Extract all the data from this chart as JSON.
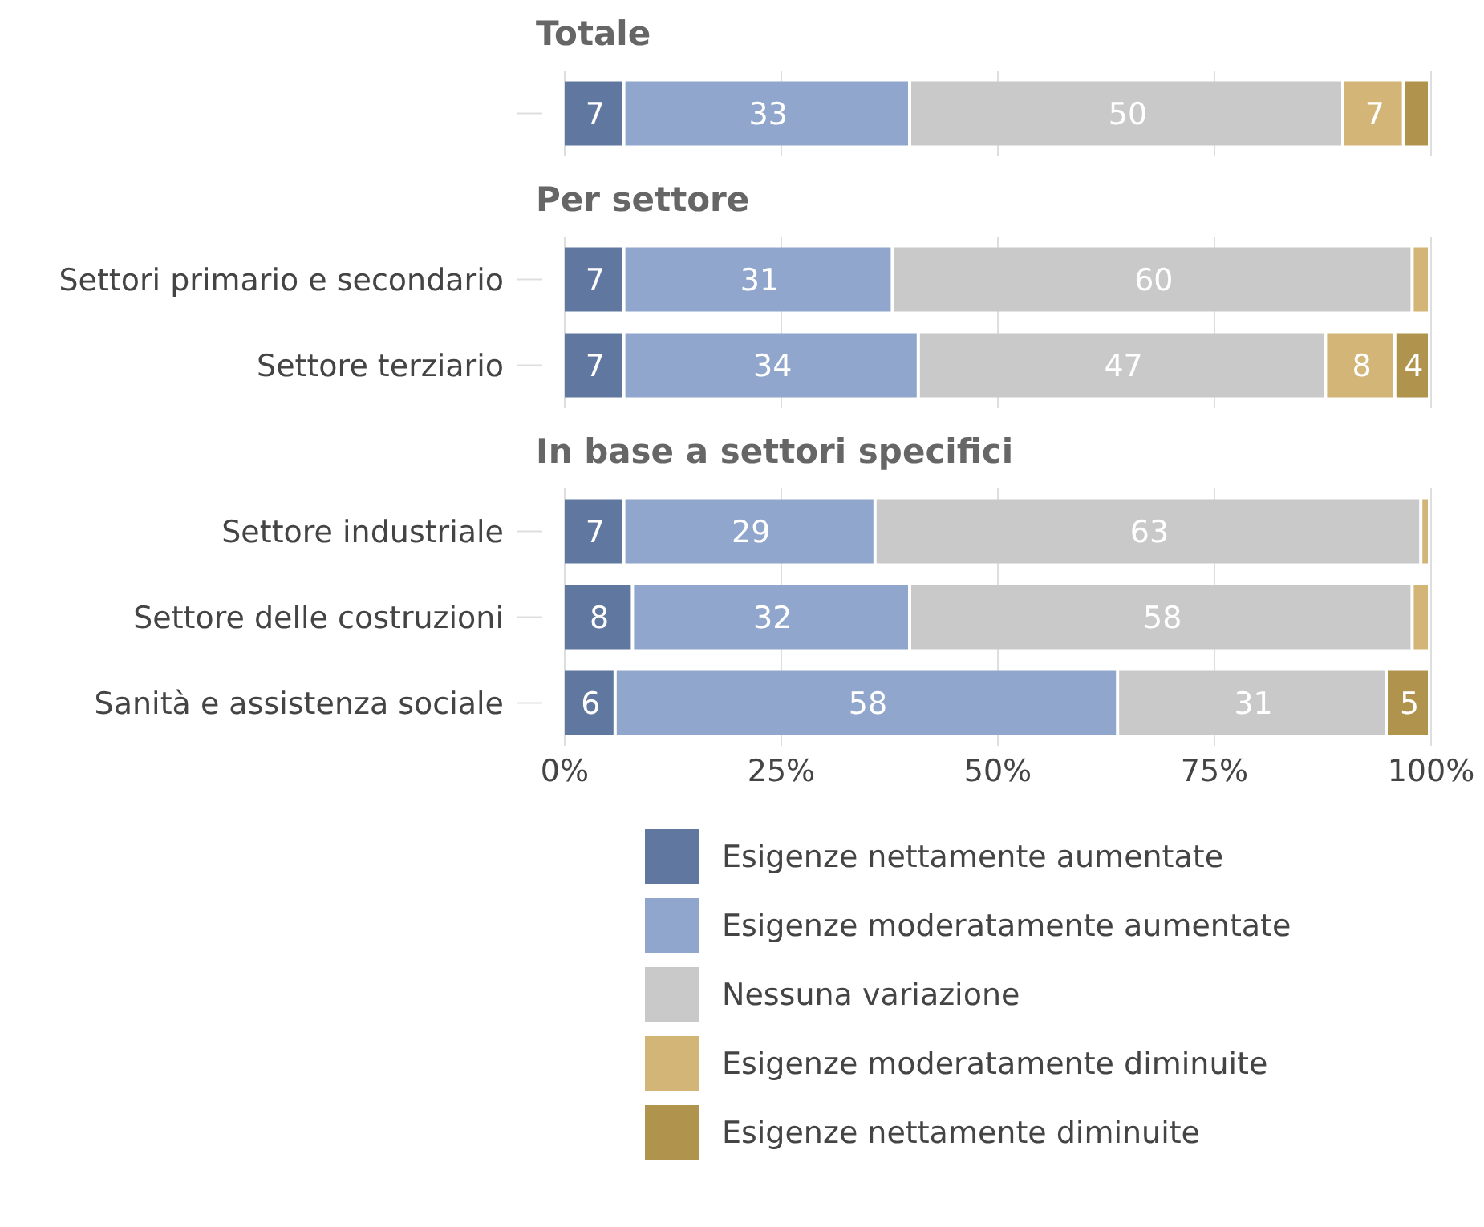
{
  "chart_data": [
    {
      "type": "bar",
      "title": "Totale",
      "orientation": "horizontal",
      "stacked": true,
      "categories": [
        null
      ],
      "xlim": [
        0,
        100
      ],
      "xticks": [
        {
          "value": 0,
          "label": null
        },
        {
          "value": 25,
          "label": null
        },
        {
          "value": 50,
          "label": null
        },
        {
          "value": 75,
          "label": null
        },
        {
          "value": 100,
          "label": null
        }
      ],
      "tick_labels": false,
      "grid": "x",
      "series": [
        {
          "color": "#60789f",
          "values": [
            7
          ],
          "value_labels": [
            "7"
          ]
        },
        {
          "color": "#91a6cc",
          "values": [
            33
          ],
          "value_labels": [
            "33"
          ]
        },
        {
          "color": "#c9c9c9",
          "values": [
            50
          ],
          "value_labels": [
            "50"
          ]
        },
        {
          "color": "#d3b577",
          "values": [
            7
          ],
          "value_labels": [
            "7"
          ]
        },
        {
          "color": "#b0944e",
          "values": [
            3
          ],
          "value_labels": [
            null
          ]
        }
      ]
    },
    {
      "type": "bar",
      "title": "Per settore",
      "orientation": "horizontal",
      "stacked": true,
      "categories": [
        "Settori primario e secondario",
        "Settore terziario"
      ],
      "xlim": [
        0,
        100
      ],
      "xticks": [
        {
          "value": 0,
          "label": null
        },
        {
          "value": 25,
          "label": null
        },
        {
          "value": 50,
          "label": null
        },
        {
          "value": 75,
          "label": null
        },
        {
          "value": 100,
          "label": null
        }
      ],
      "tick_labels": "y",
      "grid": "x",
      "series": [
        {
          "color": "#60789f",
          "values": [
            7,
            7
          ],
          "value_labels": [
            "7",
            "7"
          ]
        },
        {
          "color": "#91a6cc",
          "values": [
            31,
            34
          ],
          "value_labels": [
            "31",
            "34"
          ]
        },
        {
          "color": "#c9c9c9",
          "values": [
            60,
            47
          ],
          "value_labels": [
            "60",
            "47"
          ]
        },
        {
          "color": "#d3b577",
          "values": [
            2,
            8
          ],
          "value_labels": [
            null,
            "8"
          ]
        },
        {
          "color": "#b0944e",
          "values": [
            0,
            4
          ],
          "value_labels": [
            null,
            "4"
          ]
        }
      ]
    },
    {
      "type": "bar",
      "title": "In base a settori specifici",
      "orientation": "horizontal",
      "stacked": true,
      "categories": [
        "Settore industriale",
        "Settore delle costruzioni",
        "Sanità e assistenza sociale"
      ],
      "xlim": [
        0,
        100
      ],
      "xticks": [
        {
          "value": 0,
          "label": "0%"
        },
        {
          "value": 25,
          "label": "25%"
        },
        {
          "value": 50,
          "label": "50%"
        },
        {
          "value": 75,
          "label": "75%"
        },
        {
          "value": 100,
          "label": "100%"
        }
      ],
      "grid": "x",
      "legend": "bottom",
      "series": [
        {
          "name": "Esigenze nettamente aumentate",
          "color": "#60789f",
          "values": [
            7,
            8,
            6
          ],
          "value_labels": [
            "7",
            "8",
            "6"
          ]
        },
        {
          "name": "Esigenze moderatamente aumentate",
          "color": "#91a6cc",
          "values": [
            29,
            32,
            58
          ],
          "value_labels": [
            "29",
            "32",
            "58"
          ]
        },
        {
          "name": "Nessuna variazione",
          "color": "#c9c9c9",
          "values": [
            63,
            58,
            31
          ],
          "value_labels": [
            "63",
            "58",
            "31"
          ]
        },
        {
          "name": "Esigenze moderatamente diminuite",
          "color": "#d3b577",
          "values": [
            1,
            2,
            0
          ],
          "value_labels": [
            null,
            null,
            null
          ]
        },
        {
          "name": "Esigenze nettamente diminuite",
          "color": "#b0944e",
          "values": [
            0,
            0,
            5
          ],
          "value_labels": [
            null,
            null,
            "5"
          ]
        }
      ]
    }
  ]
}
